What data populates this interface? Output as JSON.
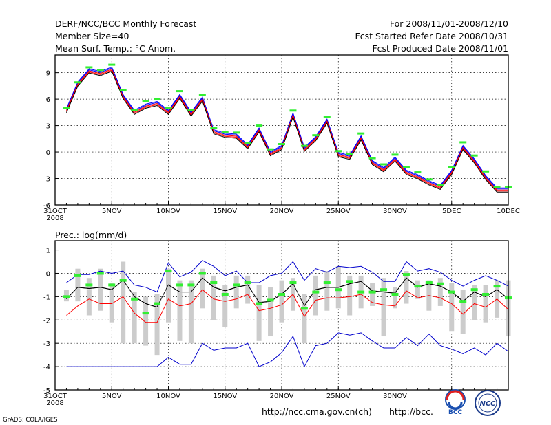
{
  "header": {
    "title": "DERF/NCC/BCC Monthly Forecast",
    "member_size": "Member Size=40",
    "variable": "Mean Surf. Temp.: °C Anom.",
    "period": "For 2008/11/01-2008/12/10",
    "started": "Fcst Started Refer Date 2008/10/31",
    "produced": "Fcst Produced Date 2008/11/01"
  },
  "footer": {
    "url1": "http://ncc.cma.gov.cn(ch)",
    "url2": "http://bcc.",
    "grads": "GrADS: COLA/IGES",
    "logo1": "BCC",
    "logo2": "NCC"
  },
  "colors": {
    "ensemble": [
      "#0000ff",
      "#ff0000",
      "#000000"
    ],
    "green": "#33ee33",
    "bar": "#cccccc"
  },
  "chart_data": [
    {
      "type": "line",
      "title": "Mean Surf. Temp.: °C Anom.",
      "xlabel": "",
      "ylabel": "",
      "x_tick_labels": [
        "31OCT",
        "5NOV",
        "10NOV",
        "15NOV",
        "20NOV",
        "25NOV",
        "30NOV",
        "5DEC",
        "10DEC"
      ],
      "x_tick_days": [
        0,
        5,
        10,
        15,
        20,
        25,
        30,
        35,
        40
      ],
      "year_label": "2008",
      "y_ticks": [
        -6,
        -3,
        0,
        3,
        6,
        9
      ],
      "y_tick_labels": [
        "-6",
        "-3",
        "0",
        "3",
        "6",
        "9"
      ],
      "ylim": [
        -6,
        11
      ],
      "xlim": [
        0,
        40
      ],
      "x": [
        1,
        2,
        3,
        4,
        5,
        6,
        7,
        8,
        9,
        10,
        11,
        12,
        13,
        14,
        15,
        16,
        17,
        18,
        19,
        20,
        21,
        22,
        23,
        24,
        25,
        26,
        27,
        28,
        29,
        30,
        31,
        32,
        33,
        34,
        35,
        36,
        37,
        38,
        39,
        40
      ],
      "series": [
        {
          "name": "mean",
          "values": [
            4.7,
            7.7,
            9.2,
            8.9,
            9.4,
            6.3,
            4.5,
            5.2,
            5.5,
            4.5,
            6.3,
            4.3,
            6.0,
            2.3,
            1.9,
            1.8,
            0.6,
            2.5,
            -0.2,
            0.5,
            4.2,
            0.3,
            1.5,
            3.5,
            -0.3,
            -0.6,
            1.6,
            -1.2,
            -2.0,
            -0.8,
            -2.3,
            -2.8,
            -3.5,
            -4.0,
            -2.3,
            0.5,
            -1.0,
            -2.9,
            -4.3,
            -4.3
          ]
        },
        {
          "name": "observed",
          "values": [
            5.0,
            7.9,
            9.6,
            9.3,
            9.9,
            7.0,
            4.8,
            5.8,
            6.0,
            5.0,
            6.9,
            4.8,
            6.5,
            2.7,
            2.3,
            2.2,
            1.0,
            3.0,
            0.3,
            0.9,
            4.7,
            0.7,
            1.9,
            4.0,
            0.1,
            -0.2,
            2.1,
            -0.7,
            -1.4,
            -0.3,
            -1.7,
            -2.3,
            -3.1,
            -3.7,
            -1.7,
            1.1,
            -0.4,
            -2.2,
            -4.0,
            -4.0
          ]
        }
      ]
    },
    {
      "type": "line",
      "title": "Prec.: log(mm/d)",
      "xlabel": "",
      "ylabel": "",
      "x_tick_labels": [
        "31OCT",
        "5NOV",
        "10NOV",
        "15NOV",
        "20NOV",
        "25NOV",
        "30NOV",
        "5D"
      ],
      "x_tick_days": [
        0,
        5,
        10,
        15,
        20,
        25,
        30,
        35
      ],
      "year_label": "2008",
      "y_ticks": [
        -5,
        -4,
        -3,
        -2,
        -1,
        0,
        1
      ],
      "y_tick_labels": [
        "-5",
        "-4",
        "-3",
        "-2",
        "-1",
        "0",
        "1"
      ],
      "ylim": [
        -5,
        1.4
      ],
      "xlim": [
        0,
        40
      ],
      "x": [
        1,
        2,
        3,
        4,
        5,
        6,
        7,
        8,
        9,
        10,
        11,
        12,
        13,
        14,
        15,
        16,
        17,
        18,
        19,
        20,
        21,
        22,
        23,
        24,
        25,
        26,
        27,
        28,
        29,
        30,
        31,
        32,
        33,
        34,
        35,
        36,
        37,
        38,
        39,
        40
      ],
      "series": [
        {
          "name": "max",
          "values": [
            -0.4,
            -0.05,
            -0.05,
            0.1,
            0.0,
            0.1,
            -0.5,
            -0.6,
            -0.8,
            0.45,
            -0.15,
            0.05,
            0.55,
            0.3,
            -0.1,
            0.1,
            -0.4,
            -0.4,
            -0.1,
            0.0,
            0.5,
            -0.3,
            0.2,
            0.05,
            0.3,
            0.25,
            0.3,
            0.05,
            -0.35,
            -0.35,
            0.5,
            0.1,
            0.2,
            0.05,
            -0.3,
            -0.55,
            -0.3,
            -0.1,
            -0.3,
            -0.55
          ]
        },
        {
          "name": "mean",
          "values": [
            -1.1,
            -0.6,
            -0.65,
            -0.6,
            -0.7,
            -0.3,
            -1.0,
            -1.3,
            -1.45,
            -0.5,
            -0.8,
            -0.8,
            -0.2,
            -0.6,
            -0.75,
            -0.6,
            -0.5,
            -1.25,
            -1.2,
            -0.9,
            -0.45,
            -1.4,
            -0.7,
            -0.6,
            -0.6,
            -0.45,
            -0.35,
            -0.75,
            -0.8,
            -0.85,
            -0.2,
            -0.6,
            -0.45,
            -0.55,
            -0.8,
            -1.2,
            -0.8,
            -1.0,
            -0.7,
            -1.1
          ]
        },
        {
          "name": "lower",
          "values": [
            -1.8,
            -1.4,
            -1.1,
            -1.3,
            -1.3,
            -1.0,
            -1.7,
            -2.1,
            -2.1,
            -1.1,
            -1.4,
            -1.3,
            -0.7,
            -1.1,
            -1.2,
            -1.1,
            -0.9,
            -1.6,
            -1.5,
            -1.35,
            -0.9,
            -1.85,
            -1.15,
            -1.05,
            -1.05,
            -1.0,
            -0.9,
            -1.25,
            -1.35,
            -1.4,
            -0.75,
            -1.05,
            -0.95,
            -1.05,
            -1.3,
            -1.75,
            -1.3,
            -1.45,
            -1.1,
            -1.55
          ]
        },
        {
          "name": "min",
          "values": [
            -4.0,
            -4.0,
            -4.0,
            -4.0,
            -4.0,
            -4.0,
            -4.0,
            -4.0,
            -4.0,
            -3.6,
            -3.9,
            -3.9,
            -3.0,
            -3.3,
            -3.2,
            -3.2,
            -3.0,
            -4.0,
            -3.8,
            -3.4,
            -2.7,
            -4.0,
            -3.1,
            -3.0,
            -2.55,
            -2.65,
            -2.55,
            -2.9,
            -3.2,
            -3.2,
            -2.75,
            -3.1,
            -2.6,
            -3.1,
            -3.25,
            -3.45,
            -3.2,
            -3.5,
            -3.0,
            -3.35
          ]
        },
        {
          "name": "observed",
          "values": [
            -1.0,
            -0.1,
            -0.5,
            0.0,
            -0.5,
            -0.3,
            -1.1,
            -1.7,
            -1.3,
            0.1,
            -0.5,
            -0.5,
            0.0,
            -0.4,
            -0.9,
            -0.5,
            -0.4,
            -1.3,
            -1.15,
            -0.9,
            -0.4,
            -1.5,
            -0.8,
            -0.4,
            -0.7,
            -0.35,
            -0.8,
            -0.8,
            -0.7,
            -0.9,
            -0.05,
            -0.55,
            -0.4,
            -0.45,
            -0.8,
            -1.2,
            -0.7,
            -0.9,
            -0.55,
            -1.05
          ]
        },
        {
          "name": "box_top",
          "values": [
            -0.7,
            0.2,
            -0.2,
            0.2,
            -0.4,
            0.5,
            -0.8,
            -1.0,
            -0.9,
            0.2,
            -0.3,
            -0.3,
            0.2,
            -0.1,
            -0.5,
            -0.1,
            -0.1,
            -0.5,
            -0.6,
            -0.3,
            -0.2,
            -0.9,
            -0.1,
            0.1,
            0.3,
            -0.1,
            -0.1,
            -0.4,
            -0.2,
            -0.6,
            0.1,
            -0.3,
            -0.3,
            -0.2,
            -0.4,
            -0.7,
            -0.5,
            -0.5,
            -0.3,
            -0.3
          ]
        },
        {
          "name": "box_bottom",
          "values": [
            -1.2,
            -1.2,
            -1.8,
            -1.6,
            -2.1,
            -3.0,
            -3.0,
            -3.1,
            -3.5,
            -2.1,
            -2.9,
            -3.0,
            -1.5,
            -2.0,
            -2.3,
            -1.5,
            -1.3,
            -2.9,
            -2.7,
            -2.1,
            -1.6,
            -3.0,
            -1.8,
            -1.6,
            -1.5,
            -1.8,
            -1.5,
            -1.4,
            -2.7,
            -1.5,
            -1.3,
            -1.1,
            -1.6,
            -1.4,
            -2.5,
            -2.6,
            -2.0,
            -2.1,
            -1.9,
            -2.7
          ]
        }
      ]
    }
  ]
}
